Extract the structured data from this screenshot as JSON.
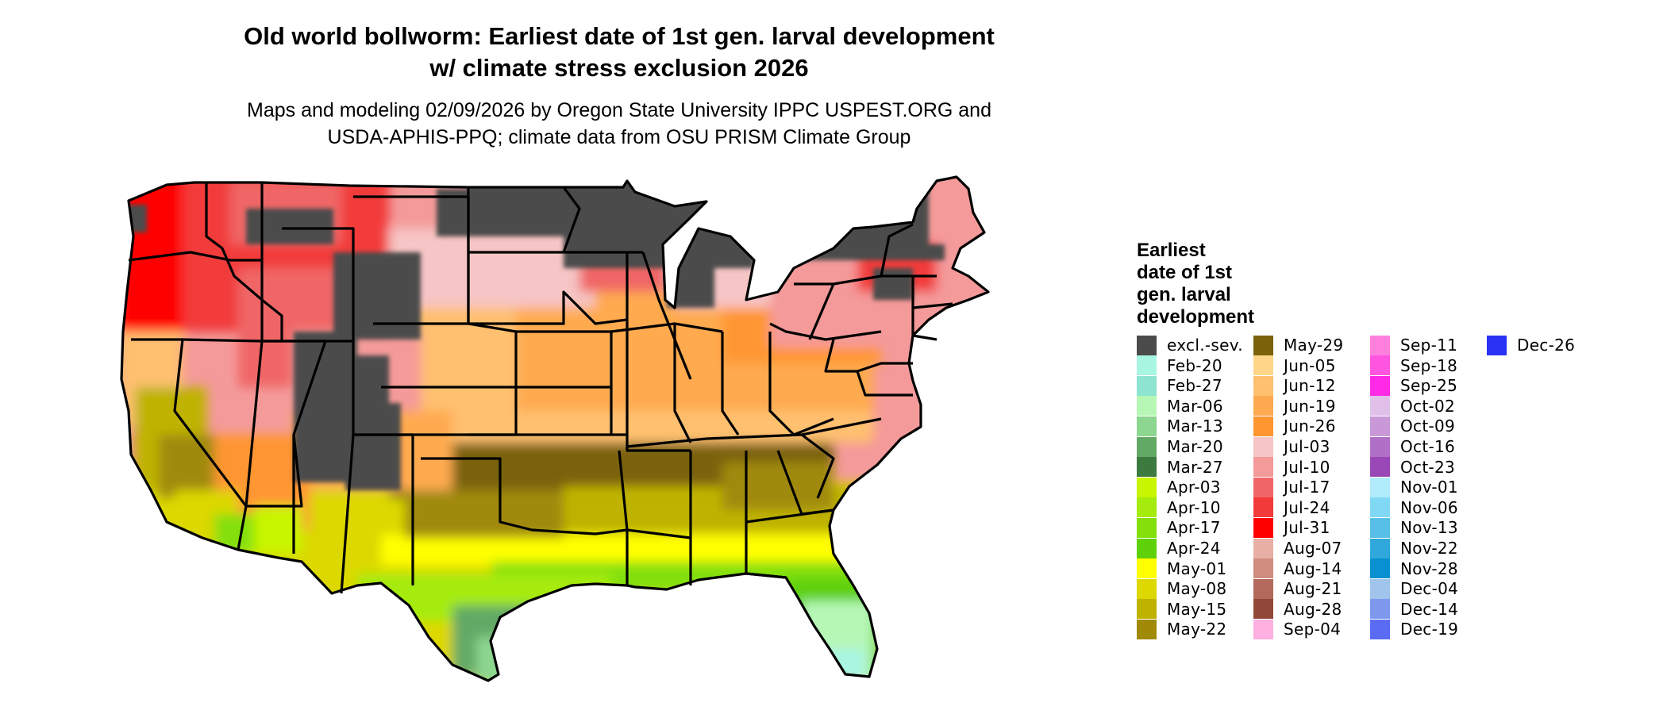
{
  "title_line1": "Old world bollworm: Earliest date of 1st gen. larval development",
  "title_line2": "w/ climate stress exclusion 2026",
  "subtitle_line1": "Maps and modeling 02/09/2026 by Oregon State University IPPC USPEST.ORG and",
  "subtitle_line2": "USDA-APHIS-PPQ; climate data from OSU PRISM Climate Group",
  "legend": {
    "title_lines": [
      "Earliest",
      "date of 1st",
      "gen. larval",
      "development"
    ],
    "items": [
      {
        "label": "excl.-sev.",
        "color": "#4b4b4b"
      },
      {
        "label": "Feb-20",
        "color": "#a8f5e2"
      },
      {
        "label": "Feb-27",
        "color": "#8de4cf"
      },
      {
        "label": "Mar-06",
        "color": "#b6f7b6"
      },
      {
        "label": "Mar-13",
        "color": "#8cd68f"
      },
      {
        "label": "Mar-20",
        "color": "#63a966"
      },
      {
        "label": "Mar-27",
        "color": "#3c7a3f"
      },
      {
        "label": "Apr-03",
        "color": "#c8f500"
      },
      {
        "label": "Apr-10",
        "color": "#a5eb0d"
      },
      {
        "label": "Apr-17",
        "color": "#84e00a"
      },
      {
        "label": "Apr-24",
        "color": "#5fd10a"
      },
      {
        "label": "May-01",
        "color": "#ffff00"
      },
      {
        "label": "May-08",
        "color": "#dcd800"
      },
      {
        "label": "May-15",
        "color": "#bfb300"
      },
      {
        "label": "May-22",
        "color": "#a08a08"
      },
      {
        "label": "May-29",
        "color": "#7a620a"
      },
      {
        "label": "Jun-05",
        "color": "#ffd68a"
      },
      {
        "label": "Jun-12",
        "color": "#ffc070"
      },
      {
        "label": "Jun-19",
        "color": "#ffaa50"
      },
      {
        "label": "Jun-26",
        "color": "#ff9630"
      },
      {
        "label": "Jul-03",
        "color": "#f6c5c5"
      },
      {
        "label": "Jul-10",
        "color": "#f49a9a"
      },
      {
        "label": "Jul-17",
        "color": "#f06666"
      },
      {
        "label": "Jul-24",
        "color": "#f23a3a"
      },
      {
        "label": "Jul-31",
        "color": "#ff0000"
      },
      {
        "label": "Aug-07",
        "color": "#e8b0a4"
      },
      {
        "label": "Aug-14",
        "color": "#cf8d7f"
      },
      {
        "label": "Aug-21",
        "color": "#b36a5c"
      },
      {
        "label": "Aug-28",
        "color": "#924838"
      },
      {
        "label": "Sep-04",
        "color": "#ffb0e0"
      },
      {
        "label": "Sep-11",
        "color": "#ff80dc"
      },
      {
        "label": "Sep-18",
        "color": "#ff55e0"
      },
      {
        "label": "Sep-25",
        "color": "#ff2ae6"
      },
      {
        "label": "Oct-02",
        "color": "#e0c0e8"
      },
      {
        "label": "Oct-09",
        "color": "#c898d8"
      },
      {
        "label": "Oct-16",
        "color": "#b070c8"
      },
      {
        "label": "Oct-23",
        "color": "#9a48b8"
      },
      {
        "label": "Nov-01",
        "color": "#b0ecfc"
      },
      {
        "label": "Nov-06",
        "color": "#80d8f4"
      },
      {
        "label": "Nov-13",
        "color": "#58c0e8"
      },
      {
        "label": "Nov-22",
        "color": "#30a8dc"
      },
      {
        "label": "Nov-28",
        "color": "#0890d0"
      },
      {
        "label": "Dec-04",
        "color": "#a0c4ec"
      },
      {
        "label": "Dec-14",
        "color": "#7e98ee"
      },
      {
        "label": "Dec-19",
        "color": "#5a6cf2"
      },
      {
        "label": "Dec-26",
        "color": "#2a32f5"
      }
    ]
  }
}
